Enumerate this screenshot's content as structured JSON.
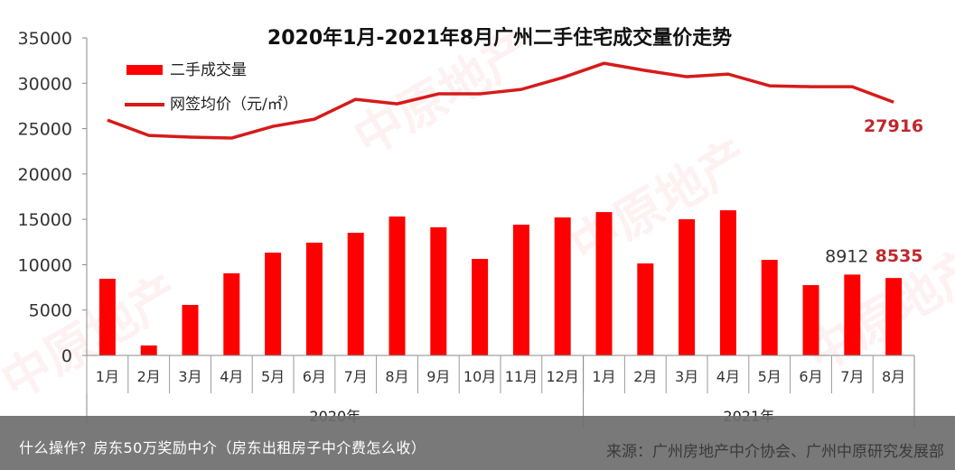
{
  "chart_data": {
    "type": "bar+line",
    "title": "2020年1月-2021年8月广州二手住宅成交量价走势",
    "xlabel": "",
    "ylabel": "",
    "ylim": [
      0,
      35000
    ],
    "yticks": [
      0,
      5000,
      10000,
      15000,
      20000,
      25000,
      30000,
      35000
    ],
    "grid": false,
    "legend_position": "upper-left",
    "categories": [
      "1月",
      "2月",
      "3月",
      "4月",
      "5月",
      "6月",
      "7月",
      "8月",
      "9月",
      "10月",
      "11月",
      "12月",
      "1月",
      "2月",
      "3月",
      "4月",
      "5月",
      "6月",
      "7月",
      "8月"
    ],
    "year_groups": [
      {
        "label": "2020年",
        "start": 0,
        "end": 11
      },
      {
        "label": "2021年",
        "start": 12,
        "end": 19
      }
    ],
    "series": [
      {
        "name": "二手成交量",
        "type": "bar",
        "color": "#ff0000",
        "values": [
          8450,
          1100,
          5570,
          9050,
          11330,
          12430,
          13520,
          15310,
          14120,
          10640,
          14410,
          15210,
          15800,
          10140,
          15010,
          16000,
          10540,
          7750,
          8912,
          8535
        ]
      },
      {
        "name": "网签均价（元/㎡）",
        "type": "line",
        "color": "#d71a1a",
        "values": [
          25940,
          24250,
          24060,
          23960,
          25250,
          26040,
          28230,
          27730,
          28830,
          28830,
          29320,
          30620,
          32200,
          31410,
          30720,
          31010,
          29720,
          29620,
          29620,
          27916
        ]
      }
    ],
    "annotations": [
      {
        "text": "27916",
        "series": "网签均价（元/㎡）",
        "index": 19,
        "color": "#c0282d"
      },
      {
        "text": "8912",
        "series": "二手成交量",
        "index": 18,
        "color": "#333333"
      },
      {
        "text": "8535",
        "series": "二手成交量",
        "index": 19,
        "color": "#c0282d"
      }
    ]
  },
  "watermark": "中原地产",
  "caption": {
    "left": "什么操作？房东50万奖励中介（房东出租房子中介费怎么收）",
    "right": "来源：广州房地产中介协会、广州中原研究发展部"
  }
}
